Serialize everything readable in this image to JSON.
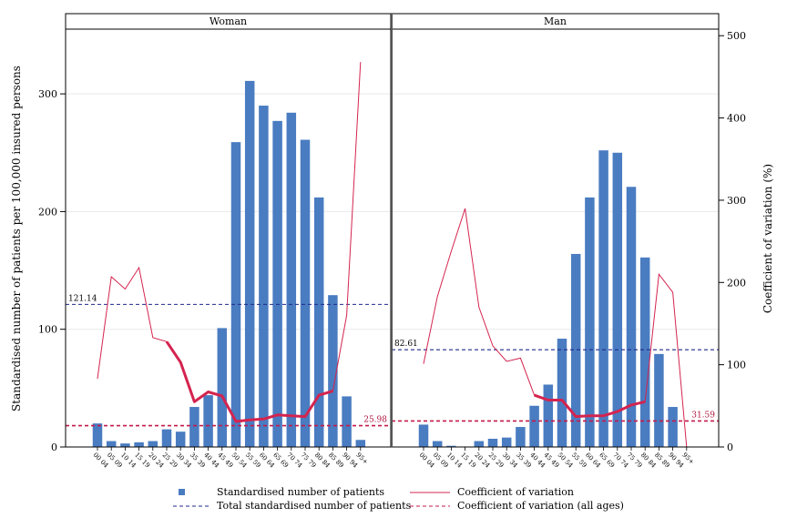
{
  "chart_data": {
    "type": "bar",
    "panels": [
      "Woman",
      "Man"
    ],
    "categories": [
      "00-04",
      "05-09",
      "10-14",
      "15-19",
      "20-24",
      "25-29",
      "30-34",
      "35-39",
      "40-44",
      "45-49",
      "50-54",
      "55-59",
      "60-64",
      "65-69",
      "70-74",
      "75-79",
      "80-84",
      "85-89",
      "90-94",
      "95+"
    ],
    "ylabel": "Standardised number of patients per 100,000 insured persons",
    "y2label": "Coefficient of variation (%)",
    "ylim": [
      0,
      355
    ],
    "y2lim": [
      0,
      508
    ],
    "yticks": [
      0,
      100,
      200,
      300
    ],
    "y2ticks": [
      0,
      100,
      200,
      300,
      400,
      500
    ],
    "series": [
      {
        "name": "Standardised number of patients",
        "kind": "bar",
        "color": "#4a7cc1",
        "Woman": [
          20,
          5,
          3,
          4,
          5,
          15,
          13,
          34,
          44,
          101,
          259,
          311,
          290,
          277,
          284,
          261,
          212,
          129,
          43,
          6
        ],
        "Man": [
          19,
          5,
          1,
          0,
          5,
          7,
          8,
          17,
          35,
          53,
          92,
          164,
          212,
          252,
          250,
          221,
          161,
          79,
          34,
          0
        ]
      },
      {
        "name": "Coefficient of variation",
        "kind": "line",
        "axis": "right",
        "color": "#d4244f",
        "Woman": [
          83,
          207,
          192,
          218,
          133,
          128,
          103,
          55,
          67,
          62,
          31,
          33,
          34,
          39,
          38,
          37,
          63,
          68,
          160,
          468
        ],
        "Man": [
          101,
          183,
          238,
          290,
          170,
          123,
          104,
          108,
          63,
          57,
          57,
          37,
          38,
          38,
          43,
          51,
          55,
          210,
          188,
          0
        ],
        "Woman_bold_range": [
          5,
          17
        ],
        "Man_bold_range": [
          8,
          16
        ]
      },
      {
        "name": "Total standardised number of patients",
        "kind": "hline",
        "color": "#1f2a8c",
        "Woman": 121.14,
        "Man": 82.61
      },
      {
        "name": "Coefficient of variation (all ages)",
        "kind": "hline",
        "axis": "right",
        "color": "#c41a4a",
        "Woman": 25.98,
        "Man": 31.59
      }
    ],
    "annotations": {
      "Woman": {
        "total": "121.14",
        "cv_all": "25.98"
      },
      "Man": {
        "total": "82.61",
        "cv_all": "31.59"
      }
    },
    "legend_placement": "bottom",
    "grid": true
  }
}
